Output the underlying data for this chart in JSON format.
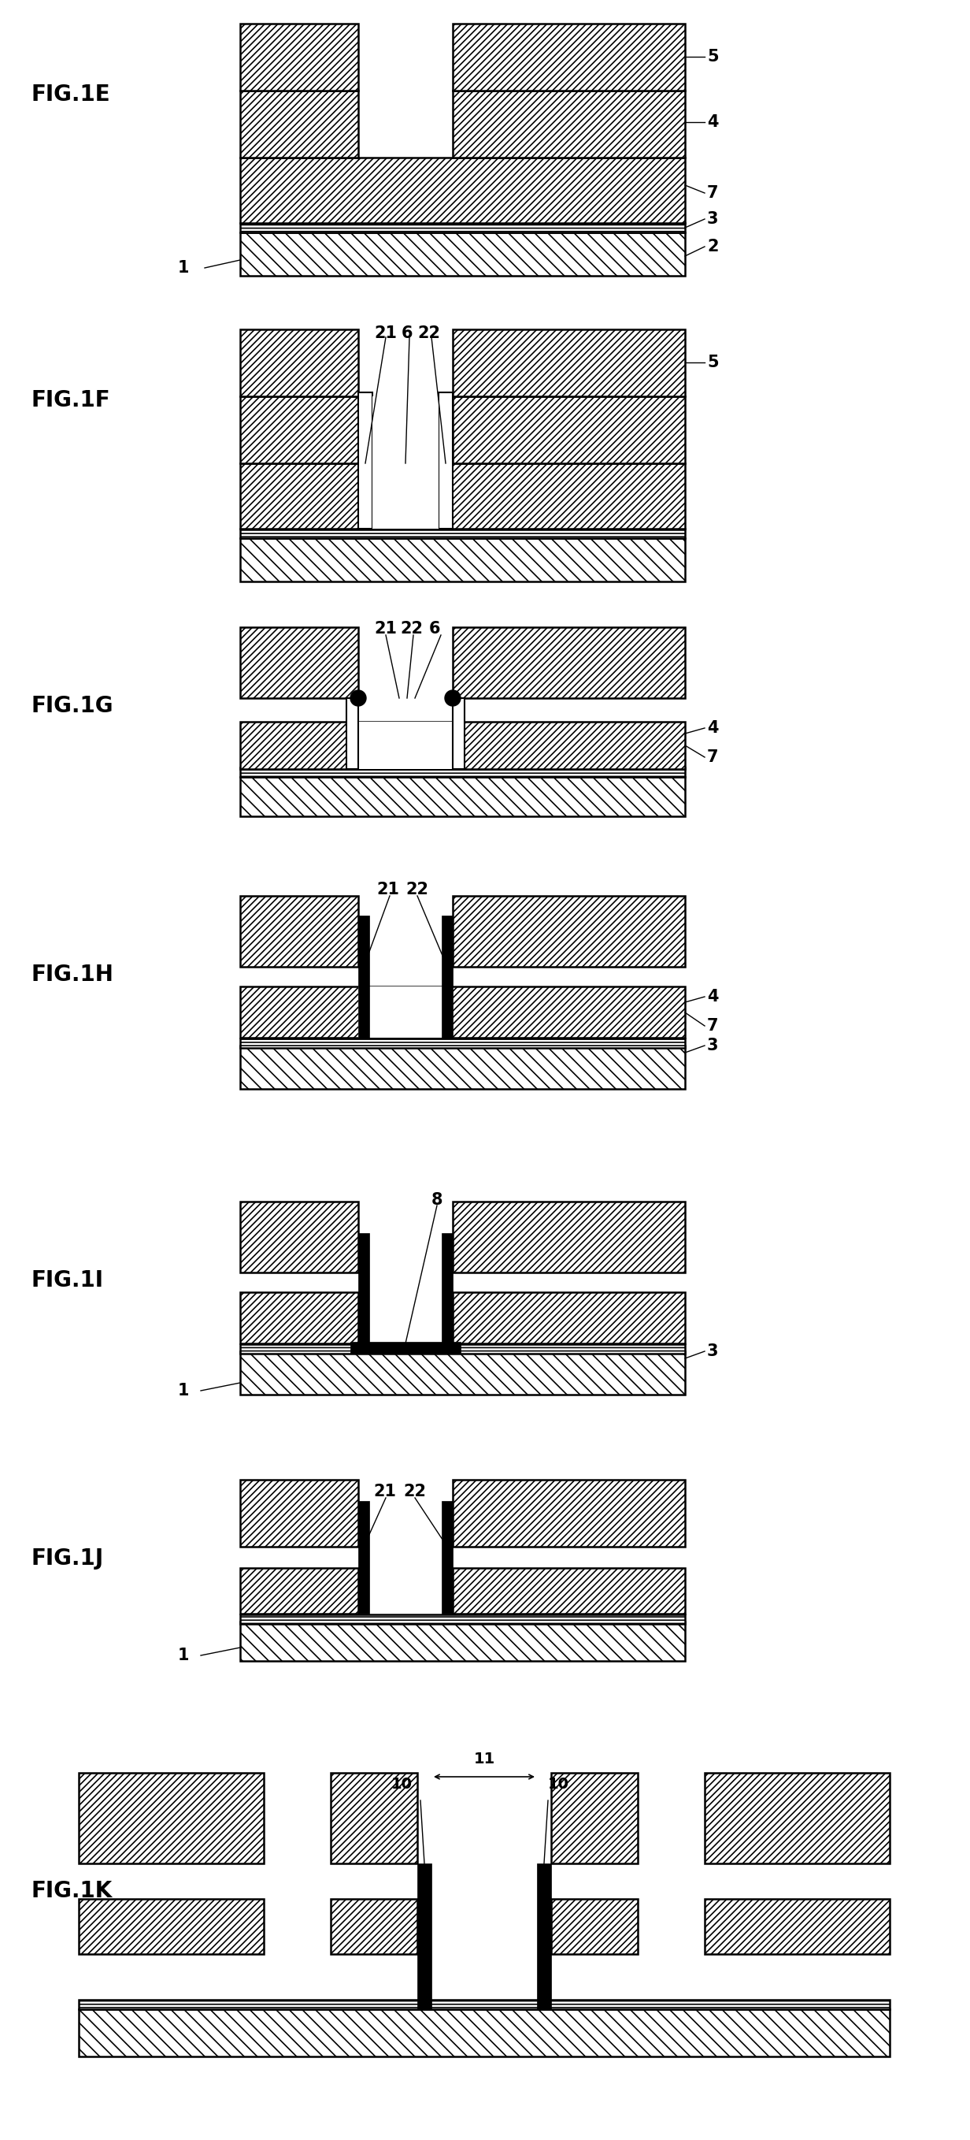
{
  "fig_labels": [
    "FIG.1E",
    "FIG.1F",
    "FIG.1G",
    "FIG.1H",
    "FIG.1I",
    "FIG.1J",
    "FIG.1K"
  ],
  "lw": 1.8,
  "hatch_45_fwd": "////",
  "hatch_45_bk": "\\\\",
  "hatch_horiz": "----",
  "colors": {
    "white": "#ffffff",
    "black": "#000000",
    "gray_light": "#dddddd"
  }
}
